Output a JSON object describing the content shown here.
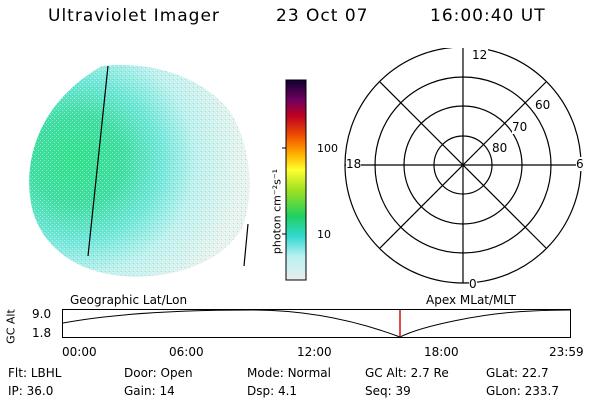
{
  "header": {
    "instrument": "Ultraviolet Imager",
    "date": "23 Oct 07",
    "time": "16:00:40 UT"
  },
  "colorbar": {
    "unit_label": "photon cm⁻²s⁻¹",
    "ticks": [
      "100",
      "10"
    ]
  },
  "polar_plot": {
    "mlt_labels": {
      "top": "12",
      "left": "18",
      "right": "6",
      "bottom": "0"
    },
    "lat_labels": [
      "60",
      "70",
      "80"
    ]
  },
  "orbit_panel": {
    "left_label": "Geographic Lat/Lon",
    "right_label": "Apex MLat/MLT",
    "axis_label": "GC Alt",
    "y_ticks": [
      "9.0",
      "1.8"
    ],
    "x_ticks": [
      "00:00",
      "06:00",
      "12:00",
      "18:00",
      "23:59"
    ],
    "marker_color": "#cc0000"
  },
  "status": {
    "row1": [
      {
        "label": "Flt:",
        "value": "LBHL"
      },
      {
        "label": "Door:",
        "value": "Open"
      },
      {
        "label": "Mode:",
        "value": "Normal"
      },
      {
        "label": "GC Alt:",
        "value": "2.7 Re"
      },
      {
        "label": "GLat:",
        "value": "22.7"
      }
    ],
    "row2": [
      {
        "label": "IP:",
        "value": "36.0"
      },
      {
        "label": "Gain:",
        "value": "14"
      },
      {
        "label": "Dsp:",
        "value": "4.1"
      },
      {
        "label": "Seq:",
        "value": "39"
      },
      {
        "label": "GLon:",
        "value": "233.7"
      }
    ]
  }
}
